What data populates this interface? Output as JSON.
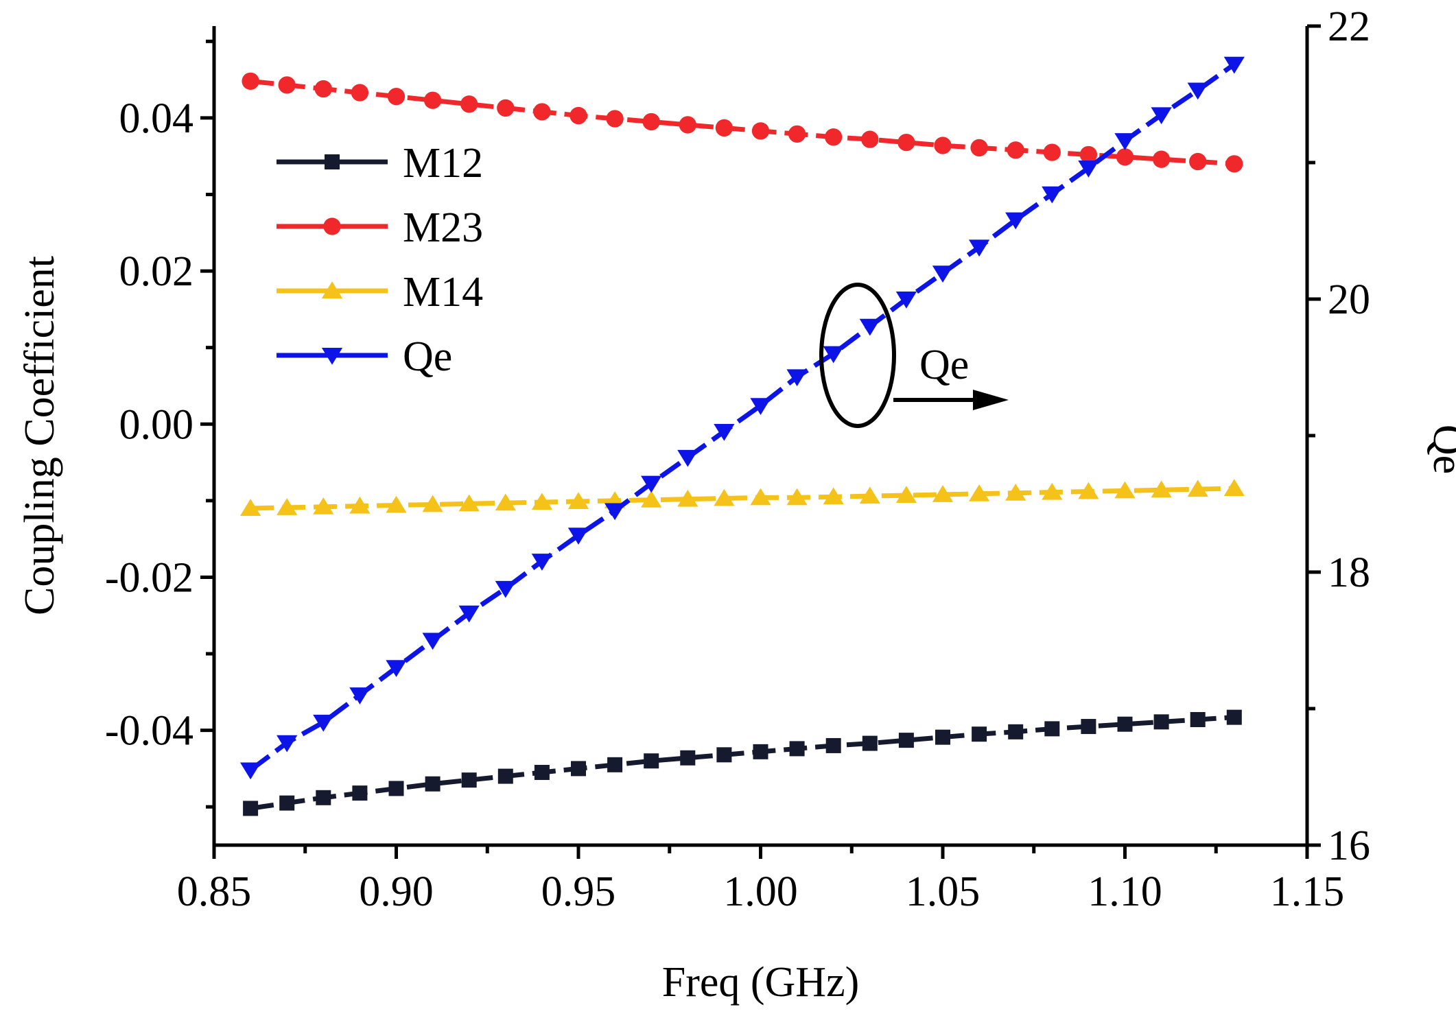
{
  "chart_data": {
    "type": "line",
    "xlabel": "Freq (GHz)",
    "ylabel": "Coupling Coefficient",
    "y2label": "Qe",
    "xlim": [
      0.85,
      1.15
    ],
    "ylim": [
      -0.055,
      0.052
    ],
    "y2lim": [
      16,
      22
    ],
    "xticks": [
      "0.85",
      "0.90",
      "0.95",
      "1.00",
      "1.05",
      "1.10",
      "1.15"
    ],
    "yticks": [
      "-0.04",
      "-0.02",
      "0.00",
      "0.02",
      "0.04"
    ],
    "y2ticks": [
      "16",
      "18",
      "20",
      "22"
    ],
    "x": [
      0.86,
      0.87,
      0.88,
      0.89,
      0.9,
      0.91,
      0.92,
      0.93,
      0.94,
      0.95,
      0.96,
      0.97,
      0.98,
      0.99,
      1.0,
      1.01,
      1.02,
      1.03,
      1.04,
      1.05,
      1.06,
      1.07,
      1.08,
      1.09,
      1.1,
      1.11,
      1.12,
      1.13
    ],
    "series": [
      {
        "name": "M12",
        "axis": "left",
        "marker": "square",
        "color": "#161a2e",
        "values": [
          -0.0502,
          -0.0495,
          -0.0488,
          -0.0482,
          -0.0476,
          -0.047,
          -0.0465,
          -0.046,
          -0.0455,
          -0.045,
          -0.0445,
          -0.044,
          -0.0436,
          -0.0432,
          -0.0428,
          -0.0424,
          -0.042,
          -0.0417,
          -0.0413,
          -0.0409,
          -0.0405,
          -0.0402,
          -0.0398,
          -0.0395,
          -0.0392,
          -0.0389,
          -0.0386,
          -0.0383
        ]
      },
      {
        "name": "M23",
        "axis": "left",
        "marker": "circle",
        "color": "#f0282b",
        "values": [
          0.0448,
          0.0443,
          0.0438,
          0.0433,
          0.0428,
          0.0423,
          0.0418,
          0.0413,
          0.0408,
          0.0403,
          0.0399,
          0.0395,
          0.0391,
          0.0387,
          0.0383,
          0.0379,
          0.0375,
          0.0372,
          0.0368,
          0.0364,
          0.0361,
          0.0358,
          0.0355,
          0.0352,
          0.0349,
          0.0346,
          0.0343,
          0.034
        ]
      },
      {
        "name": "M14",
        "axis": "left",
        "marker": "triangle-up",
        "color": "#f5c21a",
        "values": [
          -0.011,
          -0.0109,
          -0.0108,
          -0.0107,
          -0.0106,
          -0.0105,
          -0.0104,
          -0.0103,
          -0.0102,
          -0.0101,
          -0.01,
          -0.0099,
          -0.0098,
          -0.0097,
          -0.0096,
          -0.0096,
          -0.0095,
          -0.0094,
          -0.0093,
          -0.0092,
          -0.0091,
          -0.009,
          -0.0089,
          -0.0088,
          -0.0087,
          -0.0086,
          -0.0085,
          -0.0084
        ]
      },
      {
        "name": "Qe",
        "axis": "right",
        "marker": "triangle-down",
        "color": "#0d14e8",
        "values": [
          16.55,
          16.75,
          16.9,
          17.1,
          17.3,
          17.5,
          17.7,
          17.88,
          18.08,
          18.27,
          18.45,
          18.65,
          18.84,
          19.03,
          19.22,
          19.43,
          19.6,
          19.8,
          20.0,
          20.19,
          20.38,
          20.58,
          20.77,
          20.96,
          21.16,
          21.35,
          21.53,
          21.72
        ]
      }
    ],
    "annotation": {
      "text": "Qe",
      "meaning": "ellipse around Qe curve with arrow pointing to right axis"
    },
    "legend": "upper-left",
    "grid": false
  }
}
